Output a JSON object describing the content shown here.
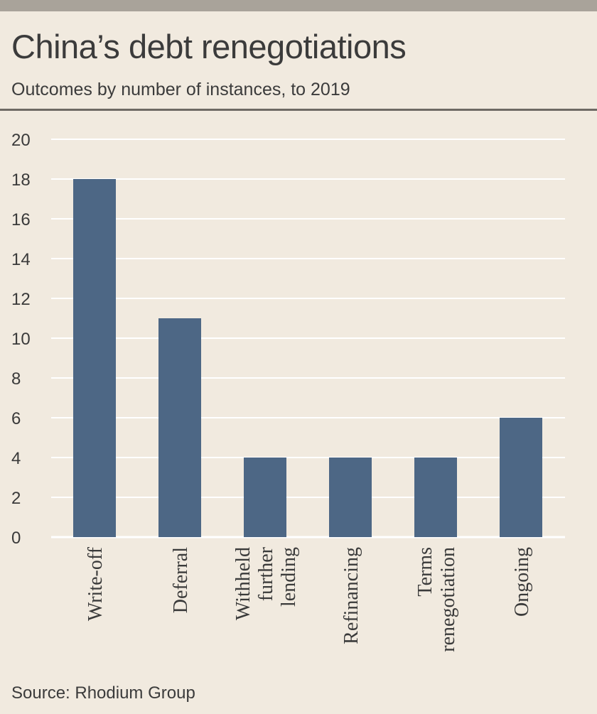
{
  "header": {
    "title": "China’s debt renegotiations",
    "subtitle": "Outcomes by number of instances, to 2019"
  },
  "footer": {
    "source": "Source: Rhodium Group"
  },
  "colors": {
    "bar": "#4d6785",
    "grid": "#ffffff",
    "background": "#f1eadf"
  },
  "chart_data": {
    "type": "bar",
    "categories": [
      [
        "Write-off"
      ],
      [
        "Deferral"
      ],
      [
        "Withheld",
        "further",
        "lending"
      ],
      [
        "Refinancing"
      ],
      [
        "Terms",
        "renegotiation"
      ],
      [
        "Ongoing"
      ]
    ],
    "values": [
      18,
      11,
      4,
      4,
      4,
      6
    ],
    "ylim": [
      0,
      20
    ],
    "yticks": [
      0,
      2,
      4,
      6,
      8,
      10,
      12,
      14,
      16,
      18,
      20
    ],
    "grid": true,
    "title": "China’s debt renegotiations",
    "subtitle": "Outcomes by number of instances, to 2019",
    "xlabel": "",
    "ylabel": ""
  }
}
